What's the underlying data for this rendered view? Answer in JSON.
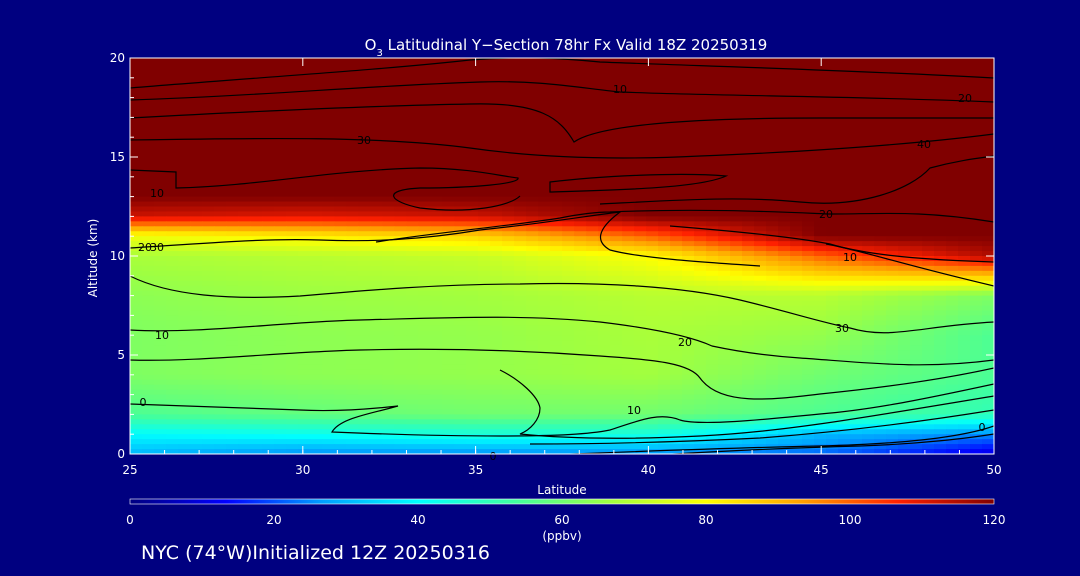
{
  "chart_data": {
    "type": "heatmap",
    "title": "O3 Latitudinal Y-Section 78hr  Fx Valid 18Z 20250319",
    "title_parts": {
      "species": "O",
      "subscript": "3",
      "rest": " Latitudinal Y−Section 78hr  Fx Valid 18Z 20250319"
    },
    "xlabel": "Latitude",
    "ylabel": "Altitude (km)",
    "xlim": [
      25,
      50
    ],
    "ylim": [
      0,
      20
    ],
    "x_ticks": [
      25,
      30,
      35,
      40,
      45,
      50
    ],
    "y_ticks": [
      0,
      5,
      10,
      15,
      20
    ],
    "grid": false,
    "colorbar": {
      "ticks": [
        0,
        20,
        40,
        60,
        80,
        100,
        120
      ],
      "range": [
        0,
        120
      ],
      "unit": "(ppbv)",
      "colors": [
        "#000080",
        "#0000ff",
        "#00a0ff",
        "#00ffff",
        "#40ffa0",
        "#a0ff40",
        "#ffff00",
        "#ffa000",
        "#ff2000",
        "#800000"
      ]
    },
    "field_grid": {
      "latitudes": [
        25,
        30,
        35,
        40,
        45,
        50
      ],
      "altitudes_km": [
        0,
        1,
        2,
        4,
        6,
        8,
        10,
        11,
        12,
        13,
        20
      ],
      "values_ppbv": [
        [
          30,
          25,
          25,
          25,
          22,
          10
        ],
        [
          40,
          42,
          45,
          45,
          30,
          25
        ],
        [
          55,
          58,
          60,
          60,
          55,
          50
        ],
        [
          62,
          64,
          65,
          67,
          60,
          55
        ],
        [
          62,
          64,
          65,
          68,
          65,
          55
        ],
        [
          64,
          66,
          67,
          70,
          70,
          62
        ],
        [
          68,
          70,
          72,
          80,
          100,
          115
        ],
        [
          78,
          82,
          86,
          100,
          120,
          120
        ],
        [
          112,
          110,
          112,
          120,
          120,
          120
        ],
        [
          120,
          120,
          120,
          120,
          120,
          120
        ],
        [
          120,
          120,
          120,
          120,
          120,
          120
        ]
      ]
    },
    "contour_labels": [
      "0",
      "10",
      "20",
      "30",
      "40",
      "10",
      "20",
      "30",
      "10",
      "20",
      "30",
      "0",
      "10",
      "0",
      "10",
      "20"
    ]
  },
  "footer": {
    "note": "NYC (74°W)Initialized 12Z 20250316"
  }
}
